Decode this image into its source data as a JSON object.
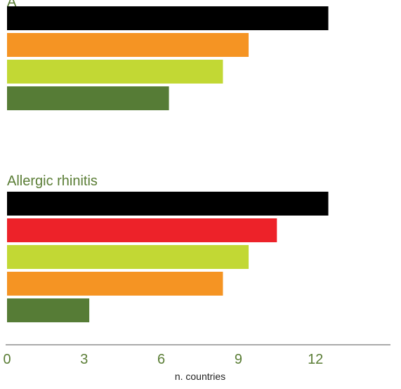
{
  "colors": {
    "label_green": "#5a7d35",
    "axis_line": "#777777",
    "axis_title": "#222222"
  },
  "chart_data": {
    "type": "bar",
    "orientation": "horizontal",
    "x_axis": {
      "label": "n. countries",
      "ticks": [
        0,
        3,
        6,
        9,
        12
      ],
      "range": [
        0,
        15
      ]
    },
    "grid": false,
    "panels": [
      {
        "title": "",
        "title_visible_partial": "A",
        "bars": [
          {
            "value": 12.5,
            "color": "#000000"
          },
          {
            "value": 9.4,
            "color": "#f59423"
          },
          {
            "value": 8.4,
            "color": "#c2d834"
          },
          {
            "value": 6.3,
            "color": "#567c36"
          }
        ]
      },
      {
        "title": "Allergic rhinitis",
        "bars": [
          {
            "value": 12.5,
            "color": "#000000"
          },
          {
            "value": 10.5,
            "color": "#ed2229"
          },
          {
            "value": 9.4,
            "color": "#c2d834"
          },
          {
            "value": 8.4,
            "color": "#f59423"
          },
          {
            "value": 3.2,
            "color": "#567c36"
          }
        ]
      }
    ]
  }
}
